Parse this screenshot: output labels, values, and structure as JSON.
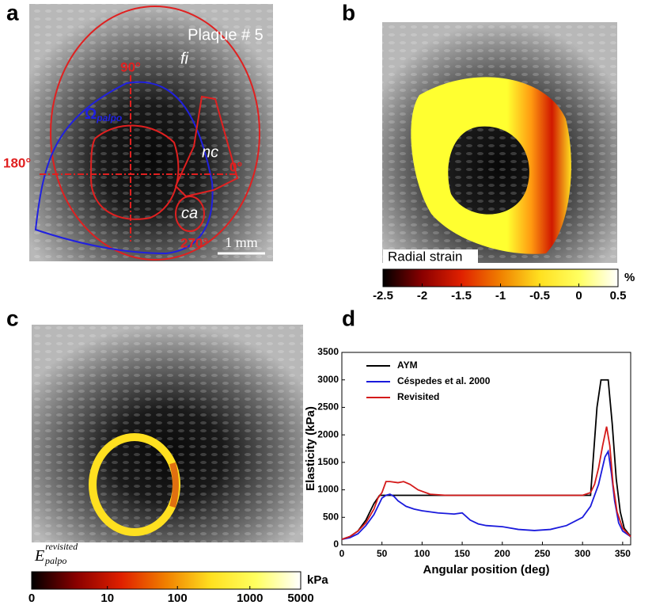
{
  "panels": {
    "a": {
      "letter": "a",
      "title": "Plaque # 5",
      "fi": "fi",
      "deg90": "90°",
      "deg180": "180°",
      "deg0": "0°",
      "deg270": "270°",
      "nc": "nc",
      "ca": "ca",
      "omega": "Ω",
      "omega_sub": "palpo",
      "scale": "1 mm"
    },
    "b": {
      "letter": "b",
      "label": "Radial strain",
      "colorbar": {
        "lim": [
          -2.5,
          0.5
        ],
        "ticks": [
          -2.5,
          -2,
          -1.5,
          -1,
          -0.5,
          0,
          0.5
        ],
        "unit": "%",
        "scale": "linear",
        "colors": [
          "#000000",
          "#8a0000",
          "#e02000",
          "#f08000",
          "#ffe020",
          "#ffff60",
          "#ffffff"
        ]
      }
    },
    "c": {
      "letter": "c",
      "label_base": "E",
      "label_sub": "palpo",
      "label_sup": "revisited",
      "colorbar": {
        "lim": [
          0,
          5000
        ],
        "ticks": [
          0,
          10,
          100,
          1000,
          5000
        ],
        "unit": "kPa",
        "scale": "symlog",
        "colors": [
          "#000000",
          "#8a0000",
          "#e02000",
          "#f08000",
          "#ffe020",
          "#ffff60",
          "#ffffff"
        ]
      }
    },
    "d": {
      "letter": "d"
    }
  },
  "chart_data": {
    "type": "line",
    "xlabel": "Angular position (deg)",
    "ylabel": "Elasticity (kPa)",
    "xlim": [
      0,
      360
    ],
    "ylim": [
      0,
      3500
    ],
    "xticks": [
      0,
      50,
      100,
      150,
      200,
      250,
      300,
      350
    ],
    "yticks": [
      0,
      500,
      1000,
      1500,
      2000,
      2500,
      3000,
      3500
    ],
    "series": [
      {
        "name": "AYM",
        "color": "#000000",
        "x": [
          0,
          10,
          20,
          30,
          40,
          47,
          100,
          200,
          300,
          310,
          313,
          318,
          323,
          332,
          337,
          342,
          347,
          352,
          360
        ],
        "values": [
          100,
          150,
          250,
          450,
          750,
          900,
          900,
          900,
          900,
          900,
          1500,
          2500,
          3000,
          3000,
          2200,
          1200,
          600,
          300,
          150
        ]
      },
      {
        "name": "Céspedes et al. 2000",
        "color": "#1a1adc",
        "x": [
          0,
          10,
          20,
          30,
          40,
          45,
          50,
          55,
          60,
          65,
          70,
          80,
          90,
          100,
          120,
          140,
          150,
          160,
          170,
          180,
          200,
          220,
          240,
          260,
          280,
          300,
          310,
          320,
          328,
          332,
          336,
          340,
          345,
          350,
          360
        ],
        "values": [
          100,
          130,
          200,
          350,
          550,
          700,
          850,
          900,
          920,
          880,
          800,
          700,
          650,
          620,
          580,
          560,
          580,
          450,
          380,
          350,
          330,
          280,
          260,
          280,
          350,
          500,
          700,
          1100,
          1600,
          1700,
          1300,
          800,
          400,
          250,
          150
        ]
      },
      {
        "name": "Revisited",
        "color": "#d41a1a",
        "x": [
          0,
          10,
          20,
          30,
          40,
          45,
          50,
          55,
          60,
          70,
          77,
          85,
          95,
          110,
          130,
          200,
          300,
          310,
          315,
          320,
          325,
          330,
          334,
          338,
          343,
          350,
          360
        ],
        "values": [
          100,
          150,
          250,
          400,
          650,
          850,
          950,
          1150,
          1150,
          1130,
          1150,
          1100,
          1000,
          920,
          900,
          900,
          900,
          950,
          1100,
          1400,
          1800,
          2150,
          1800,
          1100,
          600,
          300,
          150
        ]
      }
    ]
  }
}
